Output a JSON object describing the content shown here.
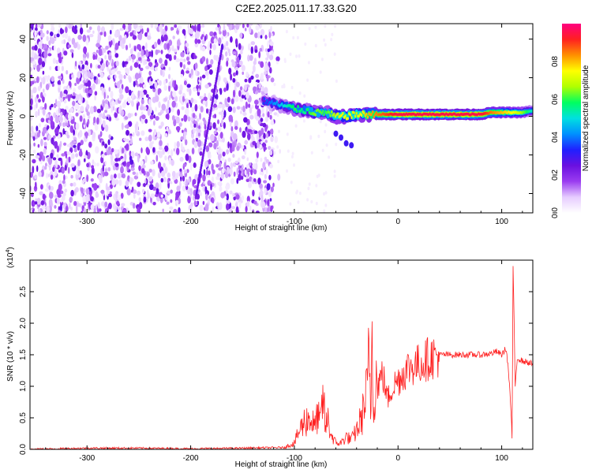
{
  "title": "C2E2.2025.011.17.33.G20",
  "chart_data": [
    {
      "type": "heatmap",
      "xlabel": "Height of straight line (km)",
      "ylabel": "Frequency (Hz)",
      "xlim": [
        -355,
        130
      ],
      "ylim": [
        -50,
        48
      ],
      "xticks": [
        -300,
        -200,
        -100,
        0,
        100
      ],
      "xtick_labels": [
        "-300",
        "-200",
        "-100",
        "0",
        "100"
      ],
      "yticks": [
        -40,
        -20,
        0,
        20,
        40
      ],
      "ytick_labels": [
        "-40",
        "-20",
        "0",
        "20",
        "40"
      ],
      "colorbar": {
        "label": "Normalized spectral amplitude",
        "range": [
          0.0,
          1.0
        ],
        "ticks": [
          0.0,
          0.2,
          0.4,
          0.6,
          0.8
        ],
        "tick_labels": [
          "0.0",
          "0.2",
          "0.4",
          "0.6",
          "0.8"
        ],
        "colormap": [
          "#ffffff",
          "#e6ccff",
          "#9a3cf0",
          "#6a10e0",
          "#2020ff",
          "#0090ff",
          "#00e0e0",
          "#00ff60",
          "#b0ff00",
          "#ffff00",
          "#ff9000",
          "#ff2020",
          "#ff0080"
        ]
      },
      "noise_region": {
        "x_range": [
          -355,
          -120
        ],
        "y_range": [
          -50,
          48
        ],
        "level": 0.2
      },
      "streak": {
        "x": [
          -195,
          -170
        ],
        "y": [
          -42,
          35
        ],
        "level": 0.22
      },
      "ridge": {
        "x": [
          -130,
          -115,
          -100,
          -90,
          -80,
          -70,
          -60,
          -50,
          -40,
          -30,
          -20,
          -10,
          0,
          20,
          40,
          60,
          80,
          90,
          100,
          110,
          120,
          130
        ],
        "y": [
          8,
          6,
          4,
          3,
          2,
          2,
          0,
          0,
          1,
          1,
          1,
          1,
          1,
          1,
          1,
          1,
          1,
          2,
          2,
          2,
          2,
          3
        ],
        "level": [
          0.35,
          0.45,
          0.6,
          0.55,
          0.65,
          0.6,
          0.7,
          0.75,
          0.7,
          0.8,
          0.85,
          0.9,
          0.95,
          0.95,
          0.95,
          0.95,
          0.95,
          0.85,
          0.8,
          0.75,
          0.65,
          0.5
        ]
      }
    },
    {
      "type": "line",
      "xlabel": "Height of straight line (km)",
      "ylabel": "SNR (10 * v/v)",
      "y_multiplier": "(x10",
      "y_multiplier_exp": "4",
      "y_multiplier_close": ")",
      "xlim": [
        -355,
        130
      ],
      "ylim": [
        0,
        3.0
      ],
      "xticks": [
        -300,
        -200,
        -100,
        0,
        100
      ],
      "xtick_labels": [
        "-300",
        "-200",
        "-100",
        "0",
        "100"
      ],
      "yticks": [
        0.0,
        0.5,
        1.0,
        1.5,
        2.0,
        2.5
      ],
      "ytick_labels": [
        "0.0",
        "0.5",
        "1.0",
        "1.5",
        "2.0",
        "2.5"
      ],
      "series": [
        {
          "color": "#ff2020",
          "x": [
            -355,
            -300,
            -250,
            -200,
            -150,
            -110,
            -100,
            -95,
            -90,
            -85,
            -80,
            -78,
            -75,
            -72,
            -70,
            -68,
            -65,
            -60,
            -55,
            -50,
            -45,
            -40,
            -35,
            -30,
            -28,
            -26,
            -25,
            -24,
            -22,
            -20,
            -15,
            -10,
            -5,
            0,
            10,
            20,
            30,
            40,
            60,
            80,
            90,
            95,
            100,
            104,
            106,
            108,
            110,
            111,
            113,
            115,
            120,
            125,
            130
          ],
          "y": [
            0.0,
            0.02,
            0.02,
            0.01,
            0.02,
            0.03,
            0.1,
            0.3,
            0.45,
            0.5,
            0.35,
            0.55,
            0.4,
            0.85,
            0.3,
            0.5,
            0.25,
            0.1,
            0.1,
            0.2,
            0.15,
            0.3,
            0.5,
            0.9,
            1.4,
            0.6,
            2.2,
            0.7,
            1.2,
            1.0,
            1.2,
            0.8,
            1.0,
            1.1,
            1.3,
            1.35,
            1.45,
            1.5,
            1.5,
            1.5,
            1.52,
            1.55,
            1.5,
            1.6,
            1.35,
            0.9,
            0.2,
            2.9,
            1.0,
            1.45,
            1.4,
            1.38,
            1.35
          ]
        }
      ]
    }
  ]
}
